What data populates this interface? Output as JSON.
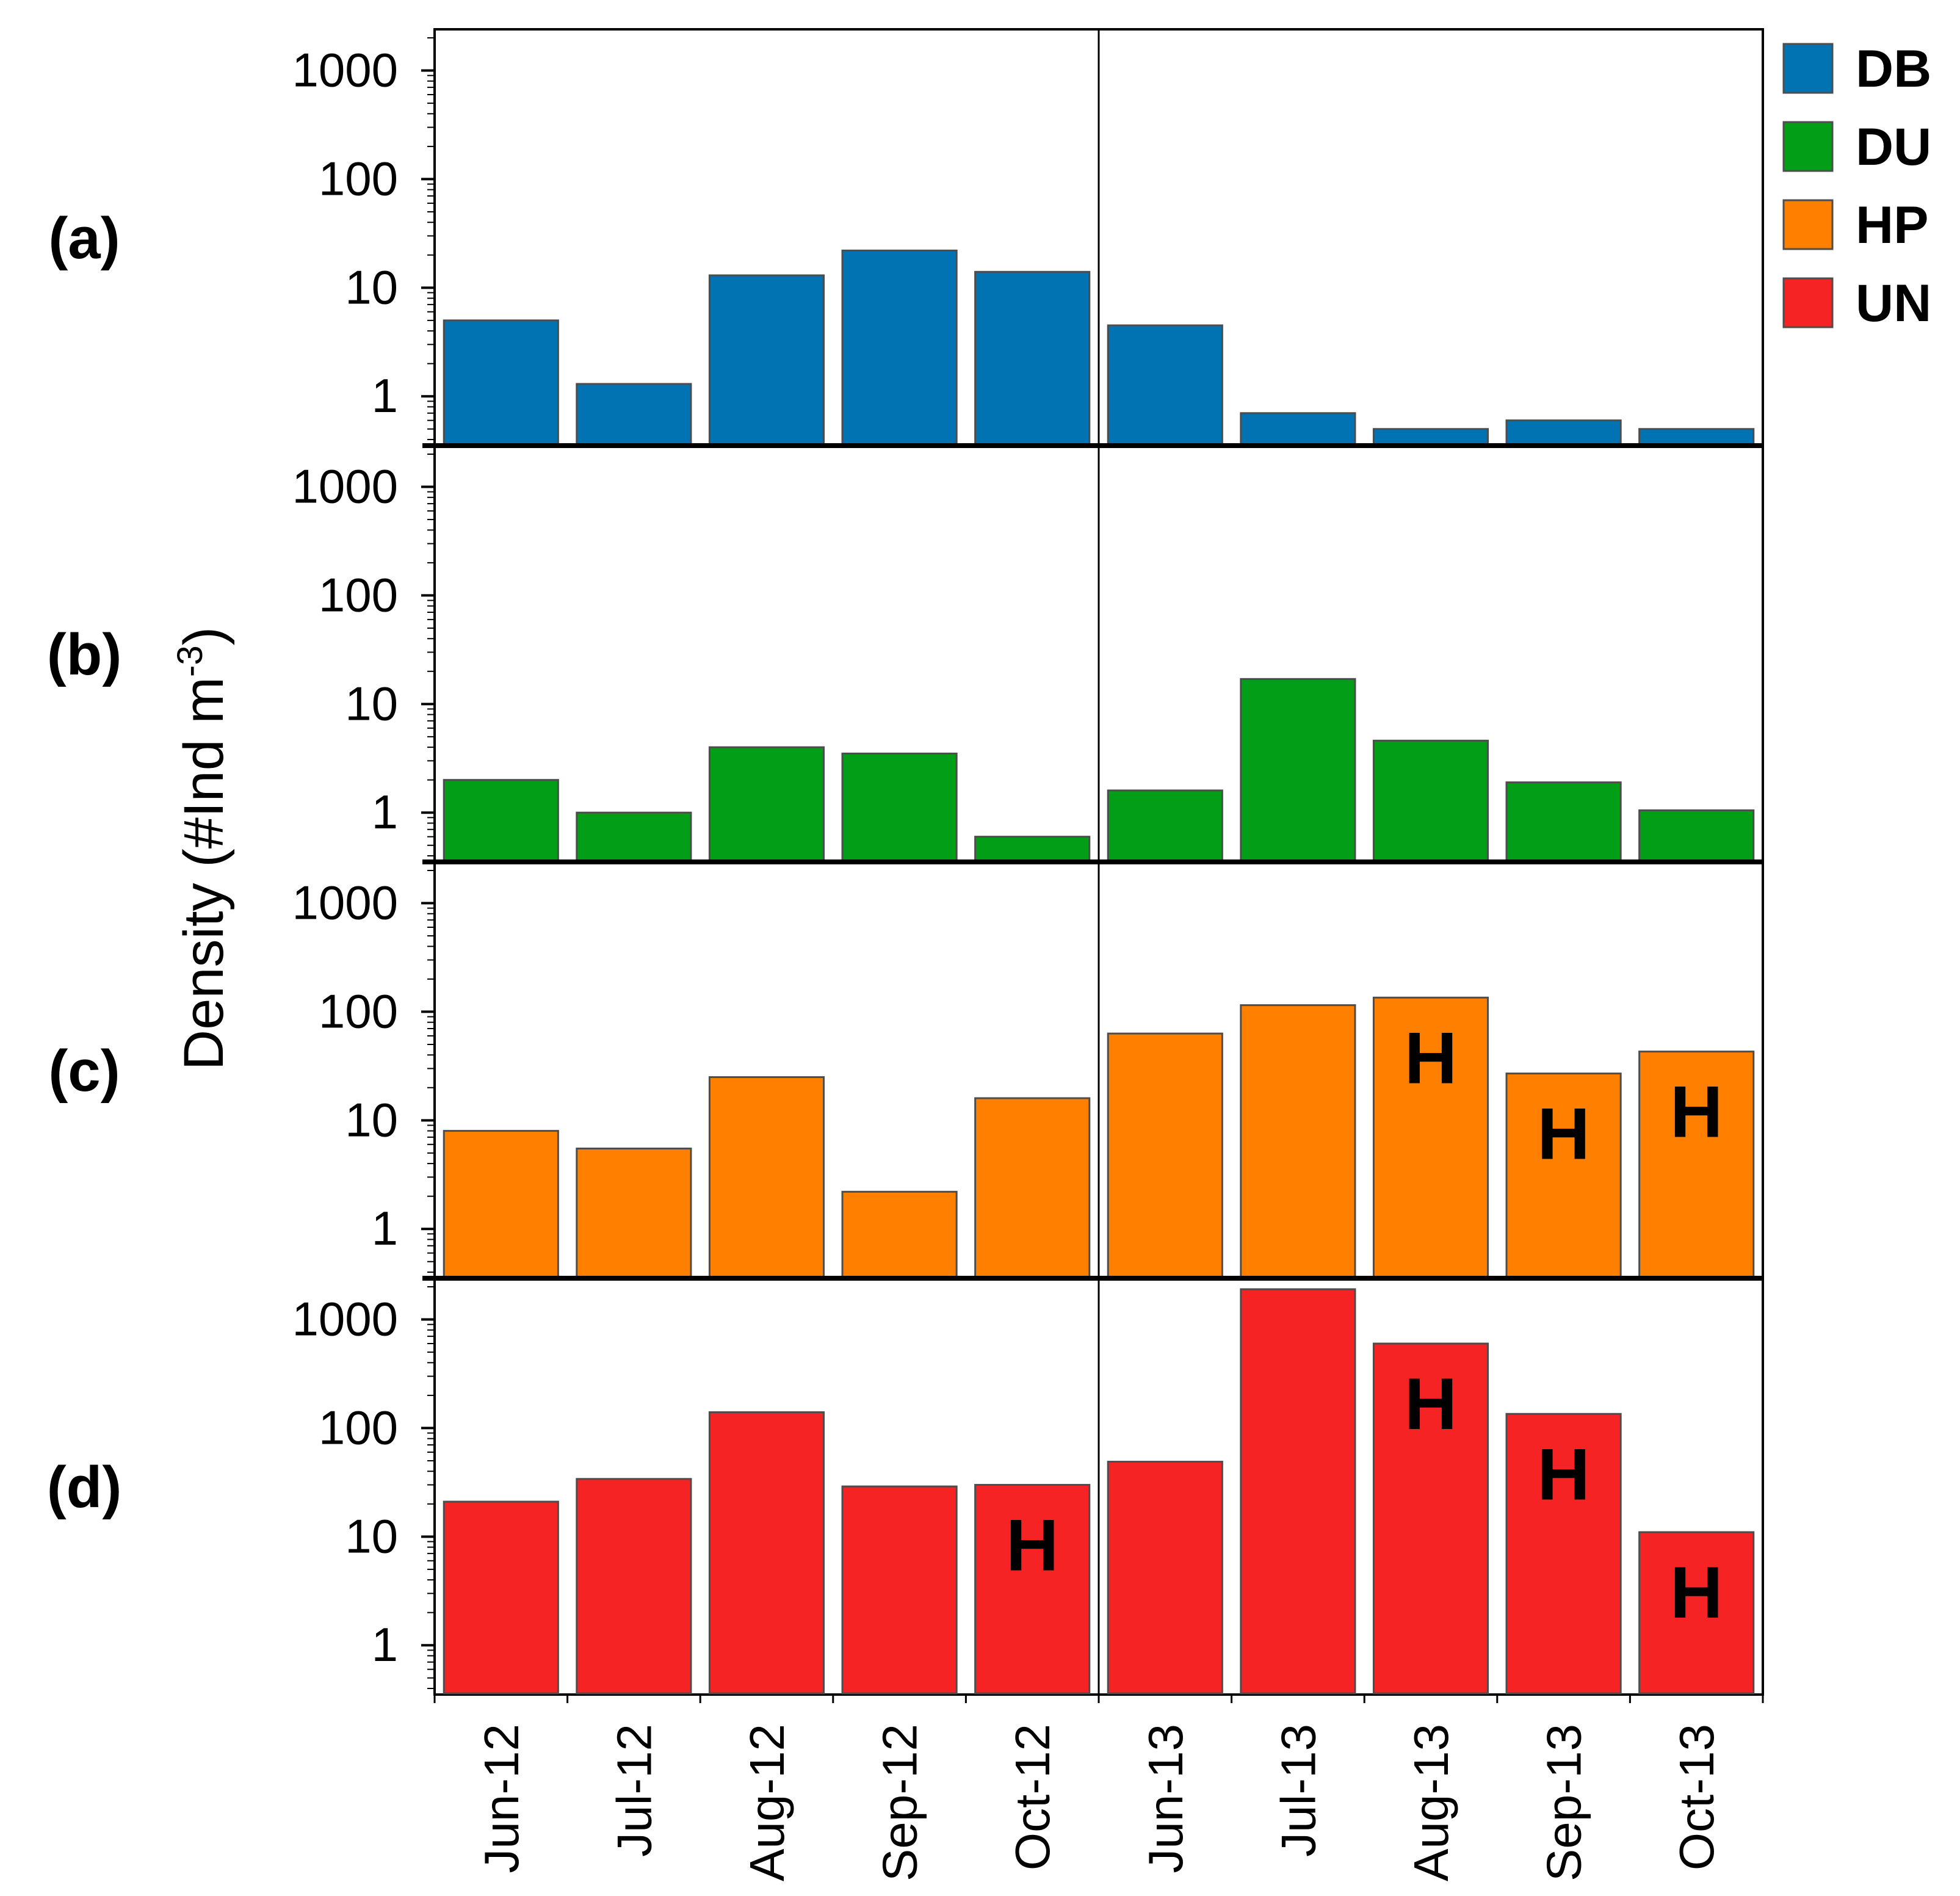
{
  "chart_data": {
    "type": "bar",
    "scale": "log",
    "ylabel": "Density (#Ind m",
    "ylabel_sup": "-3",
    "ylabel_close": ")",
    "categories": [
      "Jun-12",
      "Jul-12",
      "Aug-12",
      "Sep-12",
      "Oct-12",
      "Jun-13",
      "Jul-13",
      "Aug-13",
      "Sep-13",
      "Oct-13"
    ],
    "yticks": [
      "1",
      "10",
      "100",
      "1000"
    ],
    "ylim": [
      0.4,
      2000
    ],
    "marker_text": "H",
    "panels": [
      {
        "label": "(a)",
        "series": "DB",
        "color": "#0173b2",
        "values": [
          5,
          1.3,
          13,
          22,
          14,
          4.5,
          0.7,
          0.5,
          0.6,
          0.5
        ],
        "markers": [
          false,
          false,
          false,
          false,
          false,
          false,
          false,
          false,
          false,
          false
        ]
      },
      {
        "label": "(b)",
        "series": "DU",
        "color": "#029e17",
        "values": [
          2,
          1,
          4,
          3.5,
          0.6,
          1.6,
          17,
          4.6,
          1.9,
          1.05
        ],
        "markers": [
          false,
          false,
          false,
          false,
          false,
          false,
          false,
          false,
          false,
          false
        ]
      },
      {
        "label": "(c)",
        "series": "HP",
        "color": "#ff8000",
        "values": [
          8,
          5.5,
          25,
          2.2,
          16,
          63,
          115,
          135,
          27,
          43
        ],
        "markers": [
          false,
          false,
          false,
          false,
          false,
          false,
          false,
          true,
          true,
          true
        ]
      },
      {
        "label": "(d)",
        "series": "UN",
        "color": "#f52324",
        "values": [
          21,
          34,
          140,
          29,
          30,
          49,
          1900,
          600,
          135,
          11
        ],
        "markers": [
          false,
          false,
          false,
          false,
          true,
          false,
          false,
          true,
          true,
          true
        ]
      }
    ],
    "legend": [
      {
        "name": "DB",
        "color": "#0173b2"
      },
      {
        "name": "DU",
        "color": "#029e17"
      },
      {
        "name": "HP",
        "color": "#ff8000"
      },
      {
        "name": "UN",
        "color": "#f52324"
      }
    ]
  }
}
